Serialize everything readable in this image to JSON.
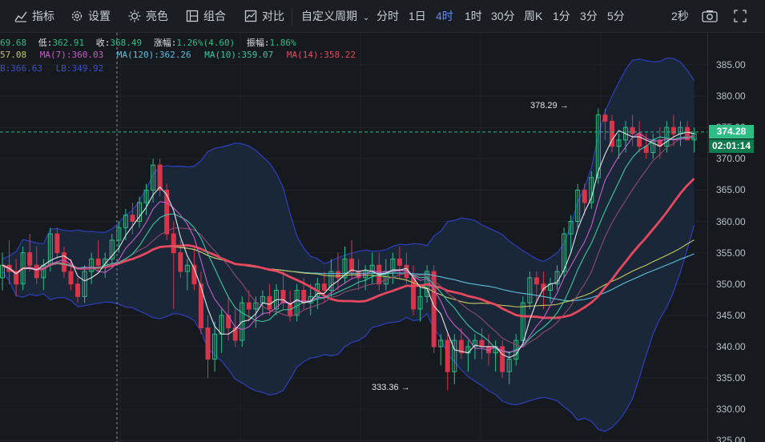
{
  "toolbar": {
    "indicators": "指标",
    "settings": "设置",
    "theme": "亮色",
    "combine": "组合",
    "compare": "对比",
    "custom_period": "自定义周期",
    "periods": [
      "分时",
      "1日",
      "4时",
      "1时",
      "30分",
      "周K",
      "1分",
      "3分",
      "5分"
    ],
    "active_period": "4时",
    "refresh": "2秒"
  },
  "info": {
    "open": "69.68",
    "low_label": "低:",
    "low": "362.91",
    "close_label": "收:",
    "close": "368.49",
    "change_label": "涨幅:",
    "change": "1.26%(4.60)",
    "amplitude_label": "振幅:",
    "amplitude": "1.86%",
    "ma_first": "57.08",
    "ma7": "MA(7):360.03",
    "ma120": "MA(120):362.26",
    "ma10": "MA(10):359.07",
    "ma14": "MA(14):358.22",
    "ub": "B:366.63",
    "lb": "LB:349.92"
  },
  "colors": {
    "up": "#2ebd85",
    "down": "#d8344a",
    "bg": "#161a1e",
    "ma7": "#c85ec8",
    "ma120": "#5bc0de",
    "ma10": "#3ec7a0",
    "ma14": "#e8485d",
    "ma_yellow": "#c9c65c",
    "band": "#2e3fbf",
    "accent": "#5b8cff"
  },
  "chart_data": {
    "type": "candlestick",
    "y_ticks": [
      385.0,
      380.0,
      375.0,
      370.0,
      365.0,
      360.0,
      355.0,
      350.0,
      345.0,
      340.0,
      335.0,
      330.0,
      325.0
    ],
    "ylim": [
      325,
      388
    ],
    "last_price": "374.28",
    "countdown": "02:01:14",
    "annotations": {
      "high": "378.29",
      "low": "333.36"
    },
    "candles": [
      [
        351,
        355,
        349,
        353
      ],
      [
        353,
        357,
        350,
        352
      ],
      [
        352,
        354,
        348,
        350
      ],
      [
        350,
        356,
        349,
        355
      ],
      [
        355,
        358,
        352,
        353
      ],
      [
        353,
        356,
        350,
        351
      ],
      [
        351,
        354,
        349,
        353
      ],
      [
        353,
        359,
        352,
        358
      ],
      [
        358,
        359,
        354,
        355
      ],
      [
        355,
        356,
        351,
        352
      ],
      [
        352,
        354,
        349,
        350
      ],
      [
        350,
        351,
        347,
        348
      ],
      [
        348,
        353,
        347,
        352
      ],
      [
        352,
        355,
        350,
        354
      ],
      [
        354,
        357,
        352,
        353
      ],
      [
        353,
        355,
        351,
        354
      ],
      [
        354,
        358,
        353,
        357
      ],
      [
        357,
        360,
        355,
        359
      ],
      [
        359,
        362,
        357,
        361
      ],
      [
        361,
        363,
        358,
        360
      ],
      [
        360,
        364,
        359,
        363
      ],
      [
        363,
        366,
        361,
        365
      ],
      [
        365,
        370,
        363,
        369
      ],
      [
        369,
        370,
        364,
        365
      ],
      [
        365,
        366,
        357,
        358
      ],
      [
        358,
        360,
        346,
        355
      ],
      [
        355,
        357,
        351,
        352
      ],
      [
        352,
        354,
        349,
        353
      ],
      [
        353,
        356,
        349,
        350
      ],
      [
        350,
        352,
        342,
        343
      ],
      [
        343,
        345,
        335,
        338
      ],
      [
        338,
        344,
        336,
        342
      ],
      [
        342,
        346,
        339,
        345
      ],
      [
        345,
        348,
        341,
        343
      ],
      [
        343,
        346,
        340,
        341
      ],
      [
        341,
        348,
        340,
        347
      ],
      [
        347,
        349,
        344,
        346
      ],
      [
        346,
        348,
        343,
        347
      ],
      [
        347,
        349,
        345,
        348
      ],
      [
        348,
        350,
        345,
        346
      ],
      [
        346,
        350,
        345,
        349
      ],
      [
        349,
        352,
        346,
        347
      ],
      [
        347,
        349,
        344,
        345
      ],
      [
        345,
        350,
        344,
        349
      ],
      [
        349,
        351,
        346,
        347
      ],
      [
        347,
        350,
        345,
        348
      ],
      [
        348,
        351,
        346,
        350
      ],
      [
        350,
        352,
        347,
        349
      ],
      [
        349,
        354,
        348,
        352
      ],
      [
        352,
        355,
        349,
        351
      ],
      [
        351,
        356,
        350,
        354
      ],
      [
        354,
        357,
        351,
        352
      ],
      [
        352,
        354,
        349,
        351
      ],
      [
        351,
        353,
        349,
        352
      ],
      [
        352,
        355,
        350,
        353
      ],
      [
        353,
        355,
        349,
        350
      ],
      [
        350,
        354,
        349,
        352
      ],
      [
        352,
        355,
        350,
        354
      ],
      [
        354,
        356,
        351,
        353
      ],
      [
        353,
        355,
        350,
        351
      ],
      [
        351,
        353,
        345,
        346
      ],
      [
        346,
        350,
        344,
        348
      ],
      [
        348,
        353,
        347,
        352
      ],
      [
        352,
        353,
        339,
        340
      ],
      [
        340,
        342,
        337,
        341
      ],
      [
        341,
        342,
        333,
        336
      ],
      [
        336,
        342,
        334,
        341
      ],
      [
        341,
        343,
        338,
        339
      ],
      [
        339,
        341,
        336,
        340
      ],
      [
        340,
        342,
        338,
        341
      ],
      [
        341,
        343,
        338,
        340
      ],
      [
        340,
        342,
        337,
        339
      ],
      [
        339,
        341,
        336,
        340
      ],
      [
        340,
        341,
        335,
        336
      ],
      [
        336,
        339,
        334,
        338
      ],
      [
        338,
        342,
        337,
        341
      ],
      [
        341,
        348,
        340,
        347
      ],
      [
        347,
        352,
        346,
        351
      ],
      [
        351,
        352,
        347,
        350
      ],
      [
        350,
        352,
        346,
        349
      ],
      [
        349,
        351,
        347,
        350
      ],
      [
        350,
        353,
        349,
        352
      ],
      [
        352,
        359,
        351,
        358
      ],
      [
        358,
        361,
        355,
        360
      ],
      [
        360,
        366,
        359,
        365
      ],
      [
        365,
        366,
        361,
        363
      ],
      [
        363,
        368,
        362,
        367
      ],
      [
        367,
        378,
        366,
        377
      ],
      [
        377,
        378,
        373,
        376
      ],
      [
        376,
        377,
        371,
        372
      ],
      [
        372,
        374,
        370,
        373
      ],
      [
        373,
        376,
        371,
        375
      ],
      [
        375,
        377,
        372,
        374
      ],
      [
        374,
        376,
        371,
        372
      ],
      [
        372,
        374,
        370,
        371
      ],
      [
        371,
        374,
        370,
        373
      ],
      [
        373,
        375,
        370,
        372
      ],
      [
        372,
        376,
        371,
        375
      ],
      [
        375,
        377,
        372,
        374
      ],
      [
        374,
        376,
        372,
        375
      ],
      [
        375,
        376,
        373,
        373
      ],
      [
        373,
        375,
        371,
        374
      ]
    ]
  }
}
